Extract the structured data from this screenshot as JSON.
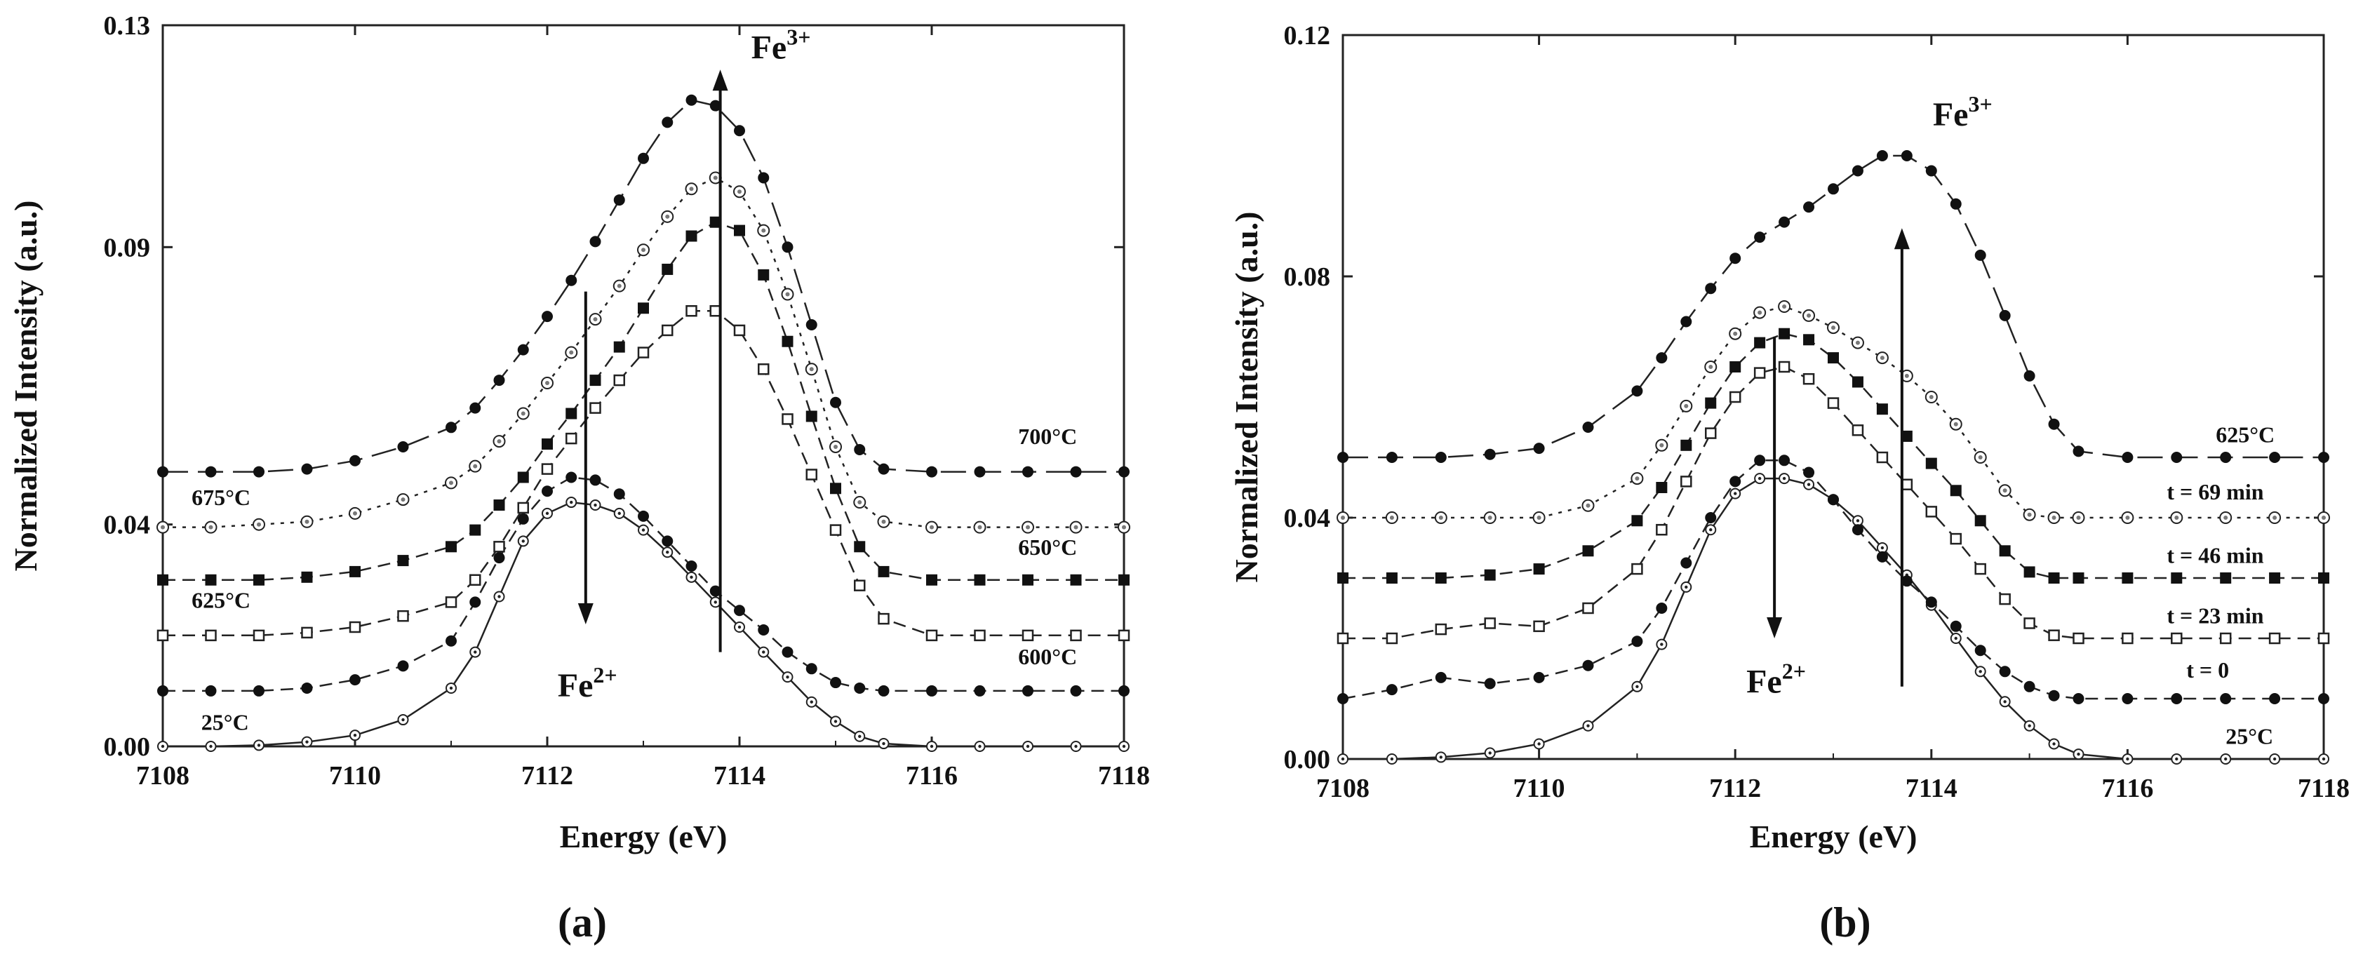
{
  "figure": {
    "panel_a_label": "(a)",
    "panel_b_label": "(b)"
  },
  "chart_data": [
    {
      "type": "line",
      "panel": "(a)",
      "title": "",
      "xlabel": "Energy (eV)",
      "ylabel": "Normalized Intensity (a.u.)",
      "xlim": [
        7108,
        7118
      ],
      "ylim": [
        0,
        0.13
      ],
      "xticks": [
        7108,
        7110,
        7112,
        7114,
        7116,
        7118
      ],
      "yticks": [
        0,
        0.04,
        0.09,
        0.13
      ],
      "ytick_labels": [
        "0.00",
        "0.04",
        "0.09",
        "0.13"
      ],
      "xtick_labels": [
        "7108",
        "7110",
        "7112",
        "7114",
        "7116",
        "7118"
      ],
      "annotations": [
        {
          "text": "Fe",
          "sup": "3+",
          "x": 7113.8,
          "y": 0.124,
          "arrow": "up",
          "from_y": 0.017,
          "to_y": 0.122
        },
        {
          "text": "Fe",
          "sup": "2+",
          "x": 7112.4,
          "y": 0.009,
          "arrow": "down",
          "from_y": 0.082,
          "to_y": 0.022
        }
      ],
      "series": [
        {
          "name": "25°C",
          "marker": "circle-dot",
          "line": "solid",
          "x": [
            7108,
            7108.5,
            7109,
            7109.5,
            7110,
            7110.5,
            7111,
            7111.25,
            7111.5,
            7111.75,
            7112,
            7112.25,
            7112.5,
            7112.75,
            7113,
            7113.25,
            7113.5,
            7113.75,
            7114,
            7114.25,
            7114.5,
            7114.75,
            7115,
            7115.25,
            7115.5,
            7116,
            7116.5,
            7117,
            7117.5,
            7118
          ],
          "y": [
            0,
            0,
            0.0002,
            0.0008,
            0.002,
            0.0048,
            0.0105,
            0.017,
            0.027,
            0.037,
            0.042,
            0.044,
            0.0435,
            0.042,
            0.039,
            0.035,
            0.0305,
            0.026,
            0.0215,
            0.017,
            0.0125,
            0.008,
            0.0045,
            0.0018,
            0.0005,
            0,
            0,
            0,
            0,
            0
          ]
        },
        {
          "name": "600°C",
          "marker": "filled-circle",
          "line": "dashed",
          "x": [
            7108,
            7108.5,
            7109,
            7109.5,
            7110,
            7110.5,
            7111,
            7111.25,
            7111.5,
            7111.75,
            7112,
            7112.25,
            7112.5,
            7112.75,
            7113,
            7113.25,
            7113.5,
            7113.75,
            7114,
            7114.25,
            7114.5,
            7114.75,
            7115,
            7115.25,
            7115.5,
            7116,
            7116.5,
            7117,
            7117.5,
            7118
          ],
          "y": [
            0.01,
            0.01,
            0.01,
            0.0105,
            0.012,
            0.0145,
            0.019,
            0.026,
            0.034,
            0.041,
            0.046,
            0.0485,
            0.048,
            0.0455,
            0.0415,
            0.037,
            0.0325,
            0.028,
            0.0245,
            0.021,
            0.017,
            0.014,
            0.0115,
            0.0105,
            0.01,
            0.01,
            0.01,
            0.01,
            0.01,
            0.01
          ]
        },
        {
          "name": "625°C",
          "marker": "open-square",
          "line": "dashed",
          "x": [
            7108,
            7108.5,
            7109,
            7109.5,
            7110,
            7110.5,
            7111,
            7111.25,
            7111.5,
            7111.75,
            7112,
            7112.25,
            7112.5,
            7112.75,
            7113,
            7113.25,
            7113.5,
            7113.75,
            7114,
            7114.25,
            7114.5,
            7114.75,
            7115,
            7115.25,
            7115.5,
            7116,
            7116.5,
            7117,
            7117.5,
            7118
          ],
          "y": [
            0.02,
            0.02,
            0.02,
            0.0205,
            0.0215,
            0.0235,
            0.026,
            0.03,
            0.036,
            0.043,
            0.05,
            0.0555,
            0.061,
            0.066,
            0.071,
            0.075,
            0.0785,
            0.0785,
            0.075,
            0.068,
            0.059,
            0.049,
            0.039,
            0.029,
            0.023,
            0.02,
            0.02,
            0.02,
            0.02,
            0.02
          ]
        },
        {
          "name": "650°C",
          "marker": "filled-square",
          "line": "dashed",
          "x": [
            7108,
            7108.5,
            7109,
            7109.5,
            7110,
            7110.5,
            7111,
            7111.25,
            7111.5,
            7111.75,
            7112,
            7112.25,
            7112.5,
            7112.75,
            7113,
            7113.25,
            7113.5,
            7113.75,
            7114,
            7114.25,
            7114.5,
            7114.75,
            7115,
            7115.25,
            7115.5,
            7116,
            7116.5,
            7117,
            7117.5,
            7118
          ],
          "y": [
            0.03,
            0.03,
            0.03,
            0.0305,
            0.0315,
            0.0335,
            0.036,
            0.039,
            0.0435,
            0.0485,
            0.0545,
            0.06,
            0.066,
            0.072,
            0.079,
            0.086,
            0.092,
            0.0945,
            0.093,
            0.085,
            0.073,
            0.0595,
            0.0465,
            0.036,
            0.0315,
            0.03,
            0.03,
            0.03,
            0.03,
            0.03
          ]
        },
        {
          "name": "675°C",
          "marker": "open-circle-dot",
          "line": "dotted",
          "x": [
            7108,
            7108.5,
            7109,
            7109.5,
            7110,
            7110.5,
            7111,
            7111.25,
            7111.5,
            7111.75,
            7112,
            7112.25,
            7112.5,
            7112.75,
            7113,
            7113.25,
            7113.5,
            7113.75,
            7114,
            7114.25,
            7114.5,
            7114.75,
            7115,
            7115.25,
            7115.5,
            7116,
            7116.5,
            7117,
            7117.5,
            7118
          ],
          "y": [
            0.0395,
            0.0395,
            0.04,
            0.0405,
            0.042,
            0.0445,
            0.0475,
            0.0505,
            0.055,
            0.06,
            0.0655,
            0.071,
            0.077,
            0.083,
            0.0895,
            0.0955,
            0.1005,
            0.1025,
            0.1,
            0.093,
            0.0815,
            0.068,
            0.054,
            0.044,
            0.0405,
            0.0395,
            0.0395,
            0.0395,
            0.0395,
            0.0395
          ]
        },
        {
          "name": "700°C",
          "marker": "filled-circle",
          "line": "long-dash",
          "x": [
            7108,
            7108.5,
            7109,
            7109.5,
            7110,
            7110.5,
            7111,
            7111.25,
            7111.5,
            7111.75,
            7112,
            7112.25,
            7112.5,
            7112.75,
            7113,
            7113.25,
            7113.5,
            7113.75,
            7114,
            7114.25,
            7114.5,
            7114.75,
            7115,
            7115.25,
            7115.5,
            7116,
            7116.5,
            7117,
            7117.5,
            7118
          ],
          "y": [
            0.0495,
            0.0495,
            0.0495,
            0.05,
            0.0515,
            0.054,
            0.0575,
            0.061,
            0.066,
            0.0715,
            0.0775,
            0.084,
            0.091,
            0.0985,
            0.106,
            0.1125,
            0.1165,
            0.1155,
            0.111,
            0.1025,
            0.09,
            0.076,
            0.062,
            0.0535,
            0.05,
            0.0495,
            0.0495,
            0.0495,
            0.0495,
            0.0495
          ]
        }
      ],
      "series_labels": [
        {
          "text": "25°C",
          "x": 7108.4,
          "y": 0.003
        },
        {
          "text": "600°C",
          "x": 7116.9,
          "y": 0.0148
        },
        {
          "text": "625°C",
          "x": 7108.3,
          "y": 0.025
        },
        {
          "text": "650°C",
          "x": 7116.9,
          "y": 0.0345
        },
        {
          "text": "675°C",
          "x": 7108.3,
          "y": 0.0435
        },
        {
          "text": "700°C",
          "x": 7116.9,
          "y": 0.0545
        }
      ]
    },
    {
      "type": "line",
      "panel": "(b)",
      "title": "",
      "xlabel": "Energy (eV)",
      "ylabel": "Normalized Intensity (a.u.)",
      "xlim": [
        7108,
        7118
      ],
      "ylim": [
        0,
        0.12
      ],
      "xticks": [
        7108,
        7110,
        7112,
        7114,
        7116,
        7118
      ],
      "yticks": [
        0,
        0.04,
        0.08,
        0.12
      ],
      "ytick_labels": [
        "0.00",
        "0.04",
        "0.08",
        "0.12"
      ],
      "xtick_labels": [
        "7108",
        "7110",
        "7112",
        "7114",
        "7116",
        "7118"
      ],
      "annotations": [
        {
          "text": "Fe",
          "sup": "3+",
          "x": 7113.7,
          "y": 0.105,
          "arrow": "up",
          "from_y": 0.012,
          "to_y": 0.088
        },
        {
          "text": "Fe",
          "sup": "2+",
          "x": 7112.4,
          "y": 0.011,
          "arrow": "down",
          "from_y": 0.07,
          "to_y": 0.02
        }
      ],
      "series": [
        {
          "name": "25°C",
          "marker": "circle-dot",
          "line": "solid",
          "x": [
            7108,
            7108.5,
            7109,
            7109.5,
            7110,
            7110.5,
            7111,
            7111.25,
            7111.5,
            7111.75,
            7112,
            7112.25,
            7112.5,
            7112.75,
            7113,
            7113.25,
            7113.5,
            7113.75,
            7114,
            7114.25,
            7114.5,
            7114.75,
            7115,
            7115.25,
            7115.5,
            7116,
            7116.5,
            7117,
            7117.5,
            7118
          ],
          "y": [
            0,
            0,
            0.0003,
            0.001,
            0.0025,
            0.0055,
            0.012,
            0.019,
            0.0285,
            0.038,
            0.044,
            0.0465,
            0.0465,
            0.0455,
            0.043,
            0.0395,
            0.035,
            0.0305,
            0.0255,
            0.02,
            0.0145,
            0.0095,
            0.0055,
            0.0025,
            0.0008,
            0,
            0,
            0,
            0,
            0
          ]
        },
        {
          "name": "t = 0",
          "marker": "filled-circle",
          "line": "dashed",
          "x": [
            7108,
            7108.5,
            7109,
            7109.5,
            7110,
            7110.5,
            7111,
            7111.25,
            7111.5,
            7111.75,
            7112,
            7112.25,
            7112.5,
            7112.75,
            7113,
            7113.25,
            7113.5,
            7113.75,
            7114,
            7114.25,
            7114.5,
            7114.75,
            7115,
            7115.25,
            7115.5,
            7116,
            7116.5,
            7117,
            7117.5,
            7118
          ],
          "y": [
            0.01,
            0.0115,
            0.0135,
            0.0125,
            0.0135,
            0.0155,
            0.0195,
            0.025,
            0.0325,
            0.04,
            0.046,
            0.0495,
            0.0495,
            0.0475,
            0.043,
            0.038,
            0.0335,
            0.0295,
            0.026,
            0.022,
            0.018,
            0.0145,
            0.012,
            0.0105,
            0.01,
            0.01,
            0.01,
            0.01,
            0.01,
            0.01
          ]
        },
        {
          "name": "t = 23 min",
          "marker": "open-square",
          "line": "dashed",
          "x": [
            7108,
            7108.5,
            7109,
            7109.5,
            7110,
            7110.5,
            7111,
            7111.25,
            7111.5,
            7111.75,
            7112,
            7112.25,
            7112.5,
            7112.75,
            7113,
            7113.25,
            7113.5,
            7113.75,
            7114,
            7114.25,
            7114.5,
            7114.75,
            7115,
            7115.25,
            7115.5,
            7116,
            7116.5,
            7117,
            7117.5,
            7118
          ],
          "y": [
            0.02,
            0.02,
            0.0215,
            0.0225,
            0.022,
            0.025,
            0.0315,
            0.038,
            0.046,
            0.054,
            0.06,
            0.064,
            0.065,
            0.063,
            0.059,
            0.0545,
            0.05,
            0.0455,
            0.041,
            0.0365,
            0.0315,
            0.0265,
            0.0225,
            0.0205,
            0.02,
            0.02,
            0.02,
            0.02,
            0.02,
            0.02
          ]
        },
        {
          "name": "t = 46 min",
          "marker": "filled-square",
          "line": "dashed",
          "x": [
            7108,
            7108.5,
            7109,
            7109.5,
            7110,
            7110.5,
            7111,
            7111.25,
            7111.5,
            7111.75,
            7112,
            7112.25,
            7112.5,
            7112.75,
            7113,
            7113.25,
            7113.5,
            7113.75,
            7114,
            7114.25,
            7114.5,
            7114.75,
            7115,
            7115.25,
            7115.5,
            7116,
            7116.5,
            7117,
            7117.5,
            7118
          ],
          "y": [
            0.03,
            0.03,
            0.03,
            0.0305,
            0.0315,
            0.0345,
            0.0395,
            0.045,
            0.052,
            0.059,
            0.065,
            0.069,
            0.0705,
            0.0695,
            0.0665,
            0.0625,
            0.058,
            0.0535,
            0.049,
            0.0445,
            0.0395,
            0.0345,
            0.031,
            0.03,
            0.03,
            0.03,
            0.03,
            0.03,
            0.03,
            0.03
          ]
        },
        {
          "name": "t = 69 min",
          "marker": "open-circle-dot",
          "line": "dotted",
          "x": [
            7108,
            7108.5,
            7109,
            7109.5,
            7110,
            7110.5,
            7111,
            7111.25,
            7111.5,
            7111.75,
            7112,
            7112.25,
            7112.5,
            7112.75,
            7113,
            7113.25,
            7113.5,
            7113.75,
            7114,
            7114.25,
            7114.5,
            7114.75,
            7115,
            7115.25,
            7115.5,
            7116,
            7116.5,
            7117,
            7117.5,
            7118
          ],
          "y": [
            0.04,
            0.04,
            0.04,
            0.04,
            0.04,
            0.042,
            0.0465,
            0.052,
            0.0585,
            0.065,
            0.0705,
            0.074,
            0.075,
            0.0735,
            0.0715,
            0.069,
            0.0665,
            0.0635,
            0.06,
            0.0555,
            0.05,
            0.0445,
            0.0405,
            0.04,
            0.04,
            0.04,
            0.04,
            0.04,
            0.04,
            0.04
          ]
        },
        {
          "name": "625°C",
          "marker": "filled-circle",
          "line": "long-dash",
          "x": [
            7108,
            7108.5,
            7109,
            7109.5,
            7110,
            7110.5,
            7111,
            7111.25,
            7111.5,
            7111.75,
            7112,
            7112.25,
            7112.5,
            7112.75,
            7113,
            7113.25,
            7113.5,
            7113.75,
            7114,
            7114.25,
            7114.5,
            7114.75,
            7115,
            7115.25,
            7115.5,
            7116,
            7116.5,
            7117,
            7117.5,
            7118
          ],
          "y": [
            0.05,
            0.05,
            0.05,
            0.0505,
            0.0515,
            0.055,
            0.061,
            0.0665,
            0.0725,
            0.078,
            0.083,
            0.0865,
            0.089,
            0.0915,
            0.0945,
            0.0975,
            0.1,
            0.1,
            0.0975,
            0.092,
            0.0835,
            0.0735,
            0.0635,
            0.0555,
            0.051,
            0.05,
            0.05,
            0.05,
            0.05,
            0.05
          ]
        }
      ],
      "series_labels": [
        {
          "text": "25°C",
          "x": 7117,
          "y": 0.0025
        },
        {
          "text": "t = 0",
          "x": 7116.6,
          "y": 0.0135
        },
        {
          "text": "t = 23 min",
          "x": 7116.4,
          "y": 0.0225
        },
        {
          "text": "t = 46 min",
          "x": 7116.4,
          "y": 0.0325
        },
        {
          "text": "t = 69 min",
          "x": 7116.4,
          "y": 0.043
        },
        {
          "text": "625°C",
          "x": 7116.9,
          "y": 0.0525
        }
      ]
    }
  ]
}
